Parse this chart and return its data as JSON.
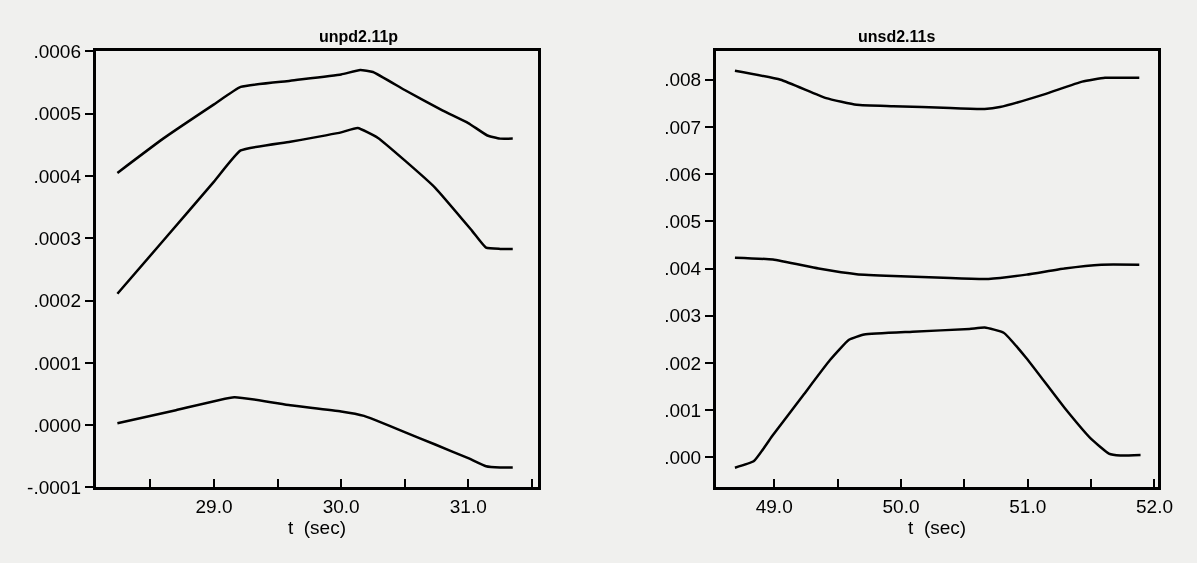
{
  "chart_data": [
    {
      "type": "line",
      "title": "unpd2.11p",
      "xlabel": "t  (sec)",
      "xlim": [
        28.07,
        31.55
      ],
      "xticks": [
        {
          "value": 28.5,
          "label": null
        },
        {
          "value": 29.0,
          "label": "29.0"
        },
        {
          "value": 29.5,
          "label": null
        },
        {
          "value": 30.0,
          "label": "30.0"
        },
        {
          "value": 30.5,
          "label": null
        },
        {
          "value": 31.0,
          "label": "31.0"
        },
        {
          "value": 31.5,
          "label": null
        }
      ],
      "ylim": [
        -0.0001,
        0.0006
      ],
      "yticks": [
        {
          "value": -0.0001,
          "label": "-.0001"
        },
        {
          "value": 0.0,
          "label": ".0000"
        },
        {
          "value": 0.0001,
          "label": ".0001"
        },
        {
          "value": 0.0002,
          "label": ".0002"
        },
        {
          "value": 0.0003,
          "label": ".0003"
        },
        {
          "value": 0.0004,
          "label": ".0004"
        },
        {
          "value": 0.0005,
          "label": ".0005"
        },
        {
          "value": 0.0006,
          "label": ".0006"
        }
      ],
      "grid": false,
      "series": [
        {
          "color": "#000000",
          "x": [
            28.24,
            28.6,
            29.0,
            29.21,
            29.6,
            30.0,
            30.15,
            30.25,
            30.5,
            30.8,
            31.0,
            31.15,
            31.25,
            31.35
          ],
          "values": [
            0.000405,
            0.00046,
            0.000515,
            0.000543,
            0.000553,
            0.000563,
            0.00057,
            0.000567,
            0.000538,
            0.000505,
            0.000485,
            0.000465,
            0.00046,
            0.00046
          ]
        },
        {
          "color": "#000000",
          "x": [
            28.24,
            28.6,
            29.0,
            29.21,
            29.6,
            30.0,
            30.13,
            30.29,
            30.5,
            30.74,
            31.03,
            31.14,
            31.25,
            31.35
          ],
          "values": [
            0.000211,
            0.000296,
            0.000391,
            0.000441,
            0.000455,
            0.00047,
            0.000477,
            0.000461,
            0.000425,
            0.000381,
            0.000312,
            0.000285,
            0.000283,
            0.000283
          ]
        },
        {
          "color": "#000000",
          "x": [
            28.24,
            28.7,
            29.16,
            29.6,
            30.0,
            30.18,
            30.26,
            30.5,
            30.74,
            31.0,
            31.14,
            31.25,
            31.35
          ],
          "values": [
            3e-06,
            2.4e-05,
            4.5e-05,
            3.2e-05,
            2.2e-05,
            1.5e-05,
            9e-06,
            -1.1e-05,
            -3.1e-05,
            -5.3e-05,
            -6.6e-05,
            -6.8e-05,
            -6.8e-05
          ]
        }
      ]
    },
    {
      "type": "line",
      "title": "unsd2.11s",
      "xlabel": "t  (sec)",
      "xlim": [
        48.54,
        52.03
      ],
      "xticks": [
        {
          "value": 49.0,
          "label": "49.0"
        },
        {
          "value": 49.5,
          "label": null
        },
        {
          "value": 50.0,
          "label": "50.0"
        },
        {
          "value": 50.5,
          "label": null
        },
        {
          "value": 51.0,
          "label": "51.0"
        },
        {
          "value": 51.5,
          "label": null
        },
        {
          "value": 52.0,
          "label": "52.0"
        }
      ],
      "ylim": [
        -0.00064,
        0.0086
      ],
      "yticks": [
        {
          "value": 0.0,
          "label": ".000"
        },
        {
          "value": 0.001,
          "label": ".001"
        },
        {
          "value": 0.002,
          "label": ".002"
        },
        {
          "value": 0.003,
          "label": ".003"
        },
        {
          "value": 0.004,
          "label": ".004"
        },
        {
          "value": 0.005,
          "label": ".005"
        },
        {
          "value": 0.006,
          "label": ".006"
        },
        {
          "value": 0.007,
          "label": ".007"
        },
        {
          "value": 0.008,
          "label": ".008"
        }
      ],
      "grid": false,
      "series": [
        {
          "color": "#000000",
          "x": [
            48.69,
            49.05,
            49.41,
            49.65,
            49.94,
            50.39,
            50.66,
            50.78,
            51.13,
            51.43,
            51.61,
            51.88
          ],
          "values": [
            0.00819,
            0.008,
            0.00761,
            0.00747,
            0.00744,
            0.0074,
            0.00738,
            0.00742,
            0.00769,
            0.00796,
            0.00804,
            0.00804
          ]
        },
        {
          "color": "#000000",
          "x": [
            48.69,
            48.99,
            49.35,
            49.65,
            49.94,
            50.39,
            50.69,
            50.99,
            51.29,
            51.58,
            51.88
          ],
          "values": [
            0.00423,
            0.00419,
            0.004,
            0.00388,
            0.00384,
            0.0038,
            0.00378,
            0.00387,
            0.004,
            0.00408,
            0.00408
          ]
        },
        {
          "color": "#000000",
          "x": [
            48.69,
            48.84,
            48.99,
            49.23,
            49.44,
            49.59,
            49.71,
            50.09,
            50.54,
            50.66,
            50.81,
            50.99,
            51.29,
            51.5,
            51.64,
            51.73,
            51.89
          ],
          "values": [
            -0.00022,
            -8e-05,
            0.00047,
            0.00132,
            0.00206,
            0.00249,
            0.0026,
            0.00266,
            0.00272,
            0.00275,
            0.00264,
            0.0021,
            0.00105,
            0.00039,
            8e-05,
            4e-05,
            5e-05
          ]
        }
      ]
    }
  ]
}
